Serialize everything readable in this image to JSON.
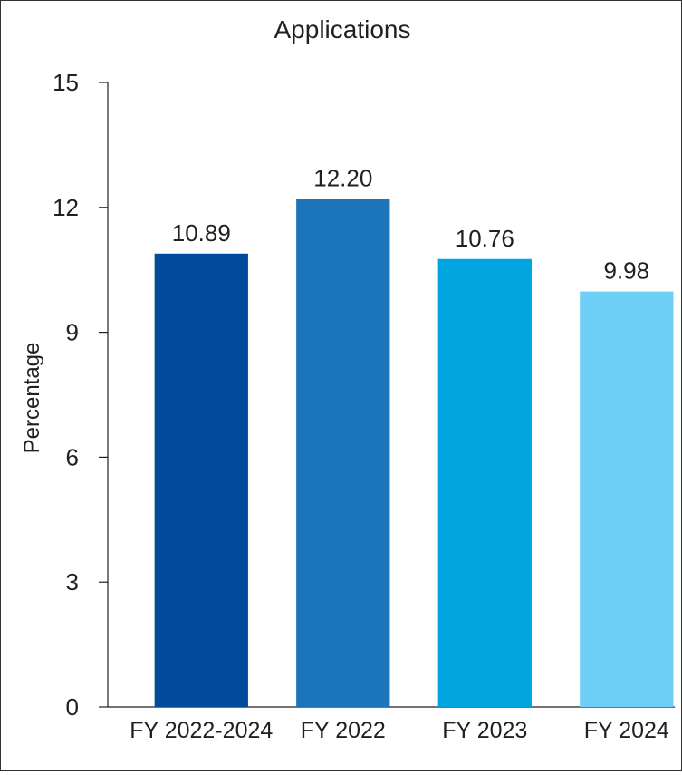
{
  "chart_data": {
    "type": "bar",
    "title": "Applications",
    "xlabel": "",
    "ylabel": "Percentage",
    "ylim": [
      0,
      15
    ],
    "yticks": [
      0,
      3,
      6,
      9,
      12,
      15
    ],
    "categories": [
      "FY 2022-2024",
      "FY 2022",
      "FY 2023",
      "FY 2024"
    ],
    "values": [
      10.89,
      12.2,
      10.76,
      9.98
    ],
    "value_labels": [
      "10.89",
      "12.20",
      "10.76",
      "9.98"
    ],
    "bar_colors": [
      "#004b9c",
      "#1c74bb",
      "#00a5df",
      "#6dcff6"
    ],
    "grid": false,
    "legend": "none"
  }
}
